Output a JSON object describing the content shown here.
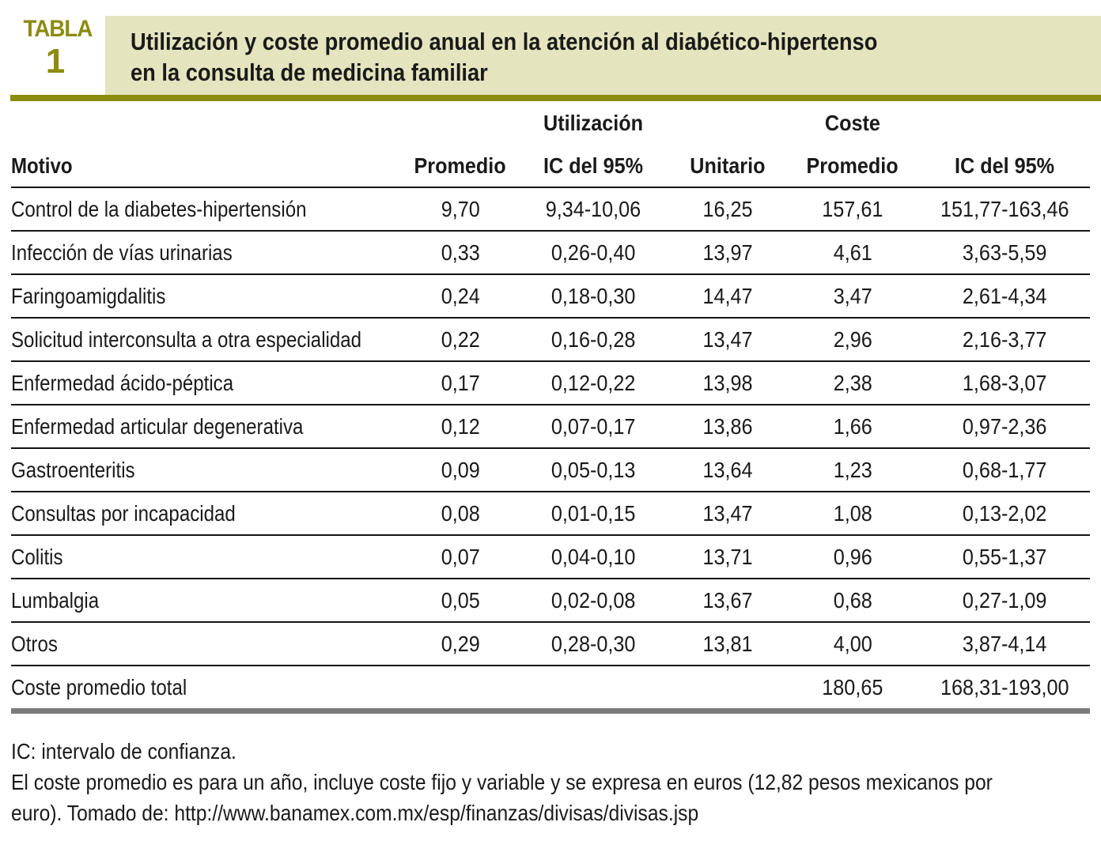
{
  "label": {
    "word": "TABLA",
    "number": "1"
  },
  "title": {
    "line1": "Utilización y coste promedio anual en la atención al diabético-hipertenso",
    "line2": "en la consulta de medicina familiar"
  },
  "colors": {
    "accent_olive": "#8B8B0E",
    "band_background": "#E4E4BE",
    "text": "#1A1A1A",
    "total_rule_gray": "#7B7B7B"
  },
  "table": {
    "group_headers": {
      "utilizacion": "Utilización",
      "coste": "Coste"
    },
    "columns": [
      "Motivo",
      "Promedio",
      "IC del 95%",
      "Unitario",
      "Promedio",
      "IC del 95%"
    ],
    "rows": [
      [
        "Control de la diabetes-hipertensión",
        "9,70",
        "9,34-10,06",
        "16,25",
        "157,61",
        "151,77-163,46"
      ],
      [
        "Infección de vías urinarias",
        "0,33",
        "0,26-0,40",
        "13,97",
        "4,61",
        "3,63-5,59"
      ],
      [
        "Faringoamigdalitis",
        "0,24",
        "0,18-0,30",
        "14,47",
        "3,47",
        "2,61-4,34"
      ],
      [
        "Solicitud interconsulta a otra especialidad",
        "0,22",
        "0,16-0,28",
        "13,47",
        "2,96",
        "2,16-3,77"
      ],
      [
        "Enfermedad ácido-péptica",
        "0,17",
        "0,12-0,22",
        "13,98",
        "2,38",
        "1,68-3,07"
      ],
      [
        "Enfermedad articular degenerativa",
        "0,12",
        "0,07-0,17",
        "13,86",
        "1,66",
        "0,97-2,36"
      ],
      [
        "Gastroenteritis",
        "0,09",
        "0,05-0,13",
        "13,64",
        "1,23",
        "0,68-1,77"
      ],
      [
        "Consultas por incapacidad",
        "0,08",
        "0,01-0,15",
        "13,47",
        "1,08",
        "0,13-2,02"
      ],
      [
        "Colitis",
        "0,07",
        "0,04-0,10",
        "13,71",
        "0,96",
        "0,55-1,37"
      ],
      [
        "Lumbalgia",
        "0,05",
        "0,02-0,08",
        "13,67",
        "0,68",
        "0,27-1,09"
      ],
      [
        "Otros",
        "0,29",
        "0,28-0,30",
        "13,81",
        "4,00",
        "3,87-4,14"
      ]
    ],
    "total_row": [
      "Coste promedio total",
      "",
      "",
      "",
      "180,65",
      "168,31-193,00"
    ]
  },
  "footnotes": [
    "IC: intervalo de confianza.",
    "El coste promedio es para un año, incluye coste fijo y variable y se expresa en euros (12,82 pesos mexicanos por",
    "euro). Tomado de: http://www.banamex.com.mx/esp/finanzas/divisas/divisas.jsp"
  ]
}
